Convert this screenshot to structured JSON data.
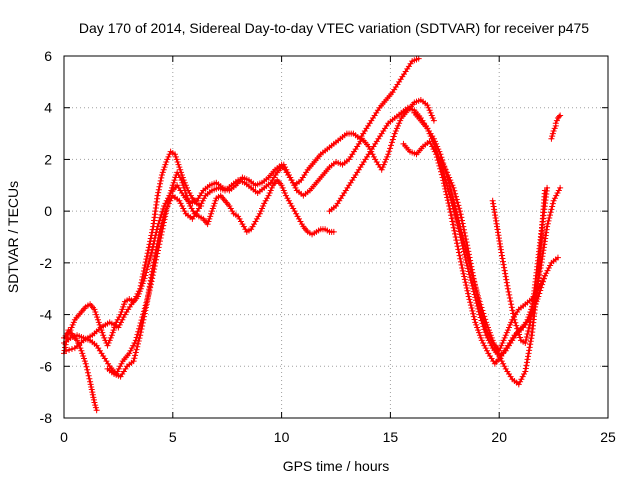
{
  "chart_data": {
    "type": "line",
    "title": "Day 170 of 2014, Sidereal Day-to-day VTEC variation (SDTVAR) for receiver p475",
    "xlabel": "GPS time / hours",
    "ylabel": "SDTVAR / TECUs",
    "xlim": [
      0,
      25
    ],
    "ylim": [
      -8,
      6
    ],
    "x_ticks": [
      "0",
      "5",
      "10",
      "15",
      "20",
      "25"
    ],
    "y_ticks": [
      "-8",
      "-6",
      "-4",
      "-2",
      "0",
      "2",
      "4",
      "6"
    ],
    "grid": true,
    "marker": "+",
    "series_color": "#ff0000",
    "series": [
      {
        "x": [
          0.0,
          0.2,
          0.4,
          0.6,
          0.8,
          1.0,
          1.2,
          1.3,
          1.4,
          1.5
        ],
        "y": [
          -5.5,
          -4.6,
          -4.8,
          -5.0,
          -5.4,
          -5.9,
          -6.6,
          -7.0,
          -7.4,
          -7.7
        ]
      },
      {
        "x": [
          0.0,
          0.3,
          0.5,
          0.8,
          1.0,
          1.2,
          1.4,
          1.6,
          1.8,
          2.0,
          2.2,
          2.4,
          2.6,
          2.8,
          3.0,
          3.2,
          3.5,
          3.7,
          3.9,
          4.1,
          4.3,
          4.5,
          4.7,
          4.9,
          5.1,
          5.3,
          5.5,
          5.7,
          5.9,
          6.1,
          6.3
        ],
        "y": [
          -4.9,
          -4.6,
          -4.2,
          -3.9,
          -3.7,
          -3.6,
          -3.8,
          -4.3,
          -4.8,
          -5.2,
          -4.8,
          -4.3,
          -4.0,
          -3.5,
          -3.4,
          -3.5,
          -3.0,
          -2.2,
          -1.4,
          -0.6,
          0.6,
          1.4,
          1.9,
          2.3,
          2.2,
          1.7,
          1.2,
          0.8,
          0.5,
          0.3,
          0.2
        ]
      },
      {
        "x": [
          0.0,
          0.3,
          0.6,
          0.9,
          1.2,
          1.5,
          1.8,
          2.1,
          2.4,
          2.7,
          3.0,
          3.3,
          3.6,
          3.9,
          4.2,
          4.5,
          4.8,
          5.0,
          5.2,
          5.4,
          5.6,
          5.8,
          6.0,
          6.2,
          6.4,
          6.6,
          6.8,
          7.0,
          7.2,
          7.4,
          7.6,
          7.8,
          8.0,
          8.2,
          8.4,
          8.6,
          8.8,
          9.0,
          9.2,
          9.4,
          9.6,
          9.8,
          10.0,
          10.2,
          10.4,
          10.6,
          10.8,
          11.0,
          11.2,
          11.4,
          11.6,
          11.8,
          12.0,
          12.2,
          12.4
        ],
        "y": [
          -5.1,
          -4.9,
          -4.8,
          -4.9,
          -5.0,
          -5.2,
          -5.6,
          -6.0,
          -6.3,
          -5.8,
          -5.5,
          -5.0,
          -4.1,
          -3.2,
          -2.0,
          -0.8,
          0.4,
          1.0,
          1.5,
          1.2,
          0.7,
          0.2,
          -0.1,
          -0.2,
          -0.3,
          -0.5,
          0.0,
          0.5,
          0.6,
          0.4,
          0.2,
          -0.1,
          -0.2,
          -0.5,
          -0.8,
          -0.7,
          -0.4,
          -0.1,
          0.3,
          0.6,
          1.0,
          1.2,
          1.0,
          0.6,
          0.3,
          0.0,
          -0.3,
          -0.6,
          -0.8,
          -0.9,
          -0.8,
          -0.7,
          -0.7,
          -0.8,
          -0.8
        ]
      },
      {
        "x": [
          0.1,
          0.5,
          0.9,
          1.3,
          1.7,
          2.1,
          2.5,
          2.8,
          3.1,
          3.4,
          3.7,
          4.0,
          4.3,
          4.6,
          4.9,
          5.2,
          5.5,
          5.8,
          6.1,
          6.4,
          6.7,
          7.0,
          7.3,
          7.6,
          7.9,
          8.2,
          8.5,
          8.8,
          9.1,
          9.4,
          9.7,
          10.0,
          10.3,
          10.6,
          10.9,
          11.2,
          11.5,
          11.8,
          12.1,
          12.4,
          12.7,
          13.0,
          13.3,
          13.6,
          13.9,
          14.2,
          14.5,
          14.8,
          15.1,
          15.4,
          15.7,
          16.0,
          16.3
        ],
        "y": [
          -5.4,
          -5.3,
          -5.0,
          -4.8,
          -4.5,
          -4.3,
          -4.5,
          -4.0,
          -3.6,
          -3.3,
          -2.6,
          -1.7,
          -0.6,
          0.2,
          0.7,
          1.0,
          0.6,
          0.3,
          0.4,
          0.8,
          1.0,
          1.1,
          0.9,
          0.8,
          1.0,
          1.3,
          1.2,
          1.0,
          1.1,
          1.3,
          1.6,
          1.8,
          1.4,
          1.0,
          1.2,
          1.6,
          1.9,
          2.2,
          2.4,
          2.6,
          2.8,
          3.0,
          3.0,
          2.8,
          3.2,
          3.6,
          4.0,
          4.3,
          4.6,
          5.0,
          5.4,
          5.8,
          5.9
        ]
      },
      {
        "x": [
          2.0,
          2.3,
          2.6,
          2.9,
          3.2,
          3.5,
          3.8,
          4.1,
          4.4,
          4.7,
          5.0,
          5.3,
          5.6,
          5.9,
          6.2,
          6.5,
          6.8,
          7.1,
          7.4,
          7.7,
          8.0,
          8.3,
          8.6,
          8.9,
          9.2,
          9.5,
          9.8,
          10.1,
          10.4,
          10.7,
          11.0,
          11.3,
          11.6,
          11.9,
          12.2,
          12.5,
          12.8,
          13.1,
          13.4,
          13.7,
          14.0,
          14.3,
          14.6,
          14.9,
          15.2,
          15.5,
          15.8,
          16.1,
          16.4,
          16.7,
          17.0
        ],
        "y": [
          -6.1,
          -6.3,
          -6.4,
          -6.0,
          -5.8,
          -4.8,
          -3.6,
          -2.1,
          -0.8,
          0.1,
          0.6,
          0.4,
          -0.1,
          -0.3,
          0.1,
          0.6,
          0.8,
          0.9,
          0.8,
          1.0,
          1.2,
          1.1,
          0.9,
          0.7,
          0.9,
          1.1,
          1.5,
          1.8,
          1.3,
          0.8,
          0.6,
          0.8,
          1.1,
          1.4,
          1.7,
          1.9,
          1.8,
          2.0,
          2.4,
          2.8,
          2.5,
          2.0,
          1.6,
          2.2,
          3.0,
          3.6,
          3.9,
          4.2,
          4.3,
          4.1,
          3.5
        ]
      },
      {
        "x": [
          12.2,
          12.5,
          12.8,
          13.1,
          13.4,
          13.7,
          14.0,
          14.3,
          14.6,
          14.9,
          15.2,
          15.5,
          15.8,
          16.1,
          16.4,
          16.7,
          17.0,
          17.3,
          17.6,
          17.9,
          18.2,
          18.5,
          18.8,
          19.1,
          19.4,
          19.7,
          20.0,
          20.3,
          20.6,
          20.9,
          21.2,
          21.5,
          21.8,
          22.1,
          22.4,
          22.7
        ],
        "y": [
          0.0,
          0.2,
          0.6,
          1.0,
          1.4,
          1.8,
          2.2,
          2.6,
          3.0,
          3.4,
          3.6,
          3.8,
          4.0,
          3.9,
          3.6,
          3.2,
          2.6,
          1.9,
          1.0,
          0.1,
          -0.9,
          -2.0,
          -3.0,
          -4.0,
          -4.8,
          -5.3,
          -5.6,
          -5.4,
          -5.0,
          -4.6,
          -4.4,
          -4.0,
          -3.3,
          -2.5,
          -2.0,
          -1.8
        ]
      },
      {
        "x": [
          15.6,
          15.9,
          16.2,
          16.5,
          16.8,
          17.1,
          17.4,
          17.7,
          18.0,
          18.3,
          18.6,
          18.9,
          19.2,
          19.5,
          19.8,
          20.1,
          20.4,
          20.7,
          21.0,
          21.3,
          21.6,
          21.9,
          22.2,
          22.5,
          22.8
        ],
        "y": [
          2.6,
          2.3,
          2.2,
          2.5,
          2.7,
          2.2,
          1.3,
          0.2,
          -1.0,
          -2.2,
          -3.3,
          -4.3,
          -5.0,
          -5.5,
          -5.9,
          -5.6,
          -5.2,
          -4.8,
          -4.6,
          -4.2,
          -3.5,
          -2.2,
          -0.6,
          0.4,
          0.9
        ]
      },
      {
        "x": [
          16.1,
          16.4,
          16.7,
          17.0,
          17.3,
          17.6,
          17.9,
          18.2,
          18.5,
          18.8,
          19.1,
          19.4,
          19.7,
          20.0,
          20.3,
          20.6,
          20.9,
          21.2,
          21.5,
          21.8,
          22.1
        ],
        "y": [
          3.8,
          3.5,
          3.2,
          2.8,
          2.2,
          1.4,
          0.4,
          -0.6,
          -1.6,
          -2.6,
          -3.5,
          -4.3,
          -5.0,
          -5.6,
          -6.1,
          -6.5,
          -6.7,
          -6.2,
          -4.8,
          -2.6,
          0.8
        ]
      },
      {
        "x": [
          17.3,
          17.6,
          17.9,
          18.2,
          18.5,
          18.8,
          19.1,
          19.4,
          19.7,
          20.0,
          20.3,
          20.6,
          20.9,
          21.2,
          21.5,
          21.8,
          22.1
        ],
        "y": [
          2.0,
          1.5,
          0.9,
          0.0,
          -1.2,
          -2.5,
          -3.7,
          -4.6,
          -5.1,
          -5.4,
          -4.8,
          -4.2,
          -3.8,
          -3.6,
          -3.4,
          -3.0,
          -2.5
        ]
      },
      {
        "x": [
          19.7,
          19.9,
          20.1,
          20.4,
          20.7,
          21.0,
          21.2,
          21.4,
          21.6,
          21.8,
          22.0,
          22.2
        ],
        "y": [
          0.4,
          -0.6,
          -1.6,
          -3.0,
          -4.2,
          -5.0,
          -5.1,
          -4.4,
          -3.2,
          -1.8,
          -0.4,
          0.9
        ]
      },
      {
        "x": [
          22.4,
          22.5,
          22.6
        ],
        "y": [
          2.8,
          3.1,
          3.3
        ]
      },
      {
        "x": [
          22.6,
          22.7,
          22.8
        ],
        "y": [
          3.4,
          3.6,
          3.7
        ]
      }
    ]
  }
}
